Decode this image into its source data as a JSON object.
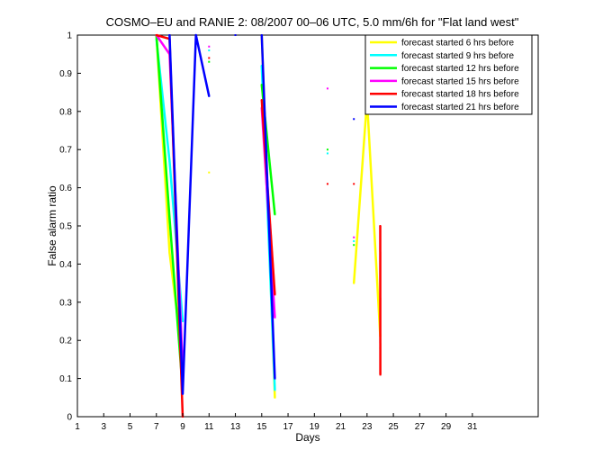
{
  "chart_data": {
    "type": "line",
    "title": "COSMO–EU and RANIE 2: 08/2007 00–06 UTC, 5.0 mm/6h for \"Flat land west\"",
    "xlabel": "Days",
    "ylabel": "False alarm ratio",
    "xlim": [
      1,
      36
    ],
    "ylim": [
      0,
      1
    ],
    "xticks": [
      1,
      3,
      5,
      7,
      9,
      11,
      13,
      15,
      17,
      19,
      21,
      23,
      25,
      27,
      29,
      31
    ],
    "yticks": [
      0,
      0.1,
      0.2,
      0.3,
      0.4,
      0.5,
      0.6,
      0.7,
      0.8,
      0.9,
      1
    ],
    "ytick_labels": [
      "0",
      "0.1",
      "0.2",
      "0.3",
      "0.4",
      "0.5",
      "0.6",
      "0.7",
      "0.8",
      "0.9",
      "1"
    ],
    "grid": false,
    "legend_position": "top-right",
    "series": [
      {
        "name": "forecast started 6 hrs before",
        "color": "#ffff00",
        "points": [
          [
            7,
            1.0
          ],
          [
            8,
            0.43
          ],
          [
            9,
            0.15
          ],
          [
            11,
            0.64
          ],
          [
            15,
            1.0
          ],
          [
            16,
            0.05
          ],
          [
            22,
            0.35
          ],
          [
            23,
            0.83
          ],
          [
            24,
            0.21
          ]
        ]
      },
      {
        "name": "forecast started 9 hrs before",
        "color": "#00ffff",
        "points": [
          [
            7,
            0.99
          ],
          [
            8,
            0.67
          ],
          [
            9,
            0.25
          ],
          [
            11,
            0.96
          ],
          [
            15,
            0.92
          ],
          [
            16,
            0.07
          ],
          [
            20,
            0.69
          ],
          [
            22,
            0.46
          ]
        ]
      },
      {
        "name": "forecast started 12 hrs before",
        "color": "#00ff00",
        "points": [
          [
            7,
            1.0
          ],
          [
            8,
            0.52
          ],
          [
            9,
            0.07
          ],
          [
            11,
            0.93
          ],
          [
            15,
            0.87
          ],
          [
            16,
            0.53
          ],
          [
            20,
            0.7
          ],
          [
            22,
            0.45
          ],
          [
            24,
            0.18
          ]
        ]
      },
      {
        "name": "forecast started 15 hrs before",
        "color": "#ff00ff",
        "points": [
          [
            7,
            1.0
          ],
          [
            8,
            0.95
          ],
          [
            9,
            0.13
          ],
          [
            11,
            0.97
          ],
          [
            15,
            0.81
          ],
          [
            16,
            0.26
          ],
          [
            20,
            0.86
          ],
          [
            22,
            0.47
          ]
        ]
      },
      {
        "name": "forecast started 18 hrs before",
        "color": "#ff0000",
        "points": [
          [
            7,
            1.0
          ],
          [
            8,
            0.99
          ],
          [
            9,
            0.0
          ],
          [
            11,
            0.94
          ],
          [
            15,
            0.83
          ],
          [
            16,
            0.32
          ],
          [
            20,
            0.61
          ],
          [
            22,
            0.61
          ],
          [
            24,
            0.5
          ],
          [
            24.01,
            0.11
          ]
        ]
      },
      {
        "name": "forecast started 21 hrs before",
        "color": "#0000ff",
        "points": [
          [
            8,
            1.0
          ],
          [
            9,
            0.06
          ],
          [
            10,
            1.0
          ],
          [
            11,
            0.84
          ],
          [
            13,
            1.0
          ],
          [
            15,
            1.0
          ],
          [
            16,
            0.1
          ],
          [
            22,
            0.78
          ],
          [
            24,
            0.85
          ]
        ]
      }
    ]
  }
}
